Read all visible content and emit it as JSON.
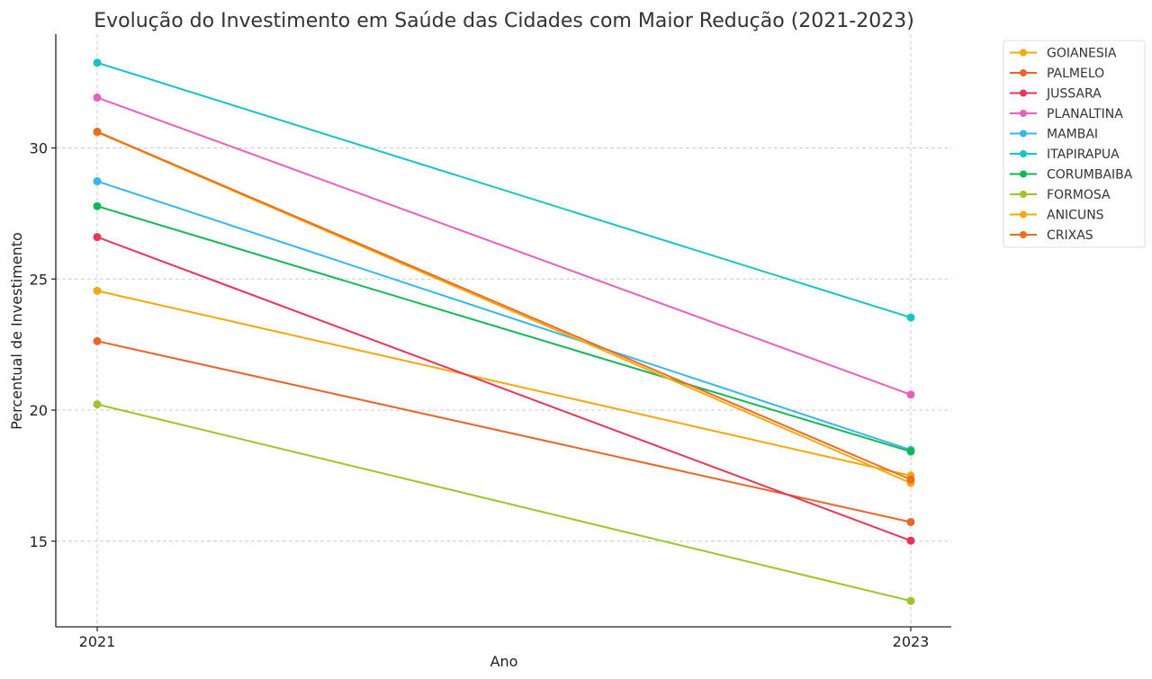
{
  "chart_data": {
    "type": "line",
    "title": "Evolução do Investimento em Saúde das Cidades com Maior Redução (2021-2023)",
    "xlabel": "Ano",
    "ylabel": "Percentual de Investimento",
    "x": [
      2021,
      2023
    ],
    "x_tick_labels": [
      "2021",
      "2023"
    ],
    "y_ticks": [
      15,
      20,
      25,
      30
    ],
    "y_tick_labels": [
      "15",
      "20",
      "25",
      "30"
    ],
    "ylim": [
      11.6,
      34.4
    ],
    "xlim": [
      2020.9,
      2023.1
    ],
    "grid": true,
    "legend_position": "outside-top-right",
    "series": [
      {
        "name": "GOIANESIA",
        "color": "#f5a70f",
        "values": [
          24.55,
          17.5
        ]
      },
      {
        "name": "PALMELO",
        "color": "#e8662a",
        "values": [
          22.63,
          15.73
        ]
      },
      {
        "name": "JUSSARA",
        "color": "#e6365a",
        "values": [
          26.6,
          15.02
        ]
      },
      {
        "name": "PLANALTINA",
        "color": "#e85fc0",
        "values": [
          31.92,
          20.59
        ]
      },
      {
        "name": "MAMBAI",
        "color": "#38b6ec",
        "values": [
          28.73,
          18.48
        ]
      },
      {
        "name": "ITAPIRAPUA",
        "color": "#17c3c3",
        "values": [
          33.25,
          23.53
        ]
      },
      {
        "name": "CORUMBAIBA",
        "color": "#12b856",
        "values": [
          27.78,
          18.42
        ]
      },
      {
        "name": "FORMOSA",
        "color": "#9cc628",
        "values": [
          20.22,
          12.72
        ]
      },
      {
        "name": "ANICUNS",
        "color": "#f7a912",
        "values": [
          30.6,
          17.22
        ]
      },
      {
        "name": "CRIXAS",
        "color": "#e86f21",
        "values": [
          30.62,
          17.35
        ]
      }
    ]
  }
}
